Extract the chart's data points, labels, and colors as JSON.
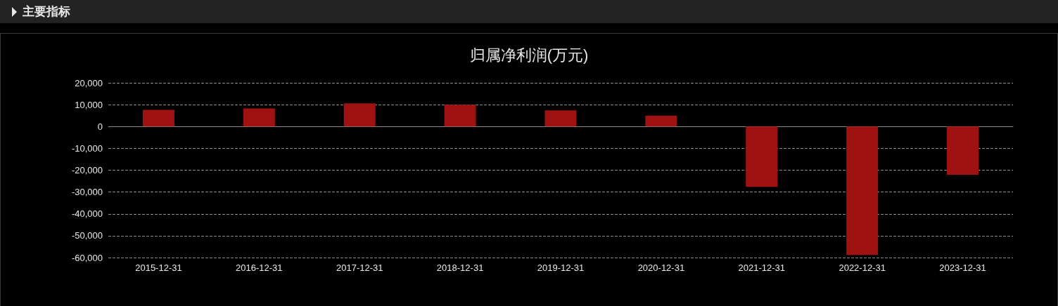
{
  "chart_data": {
    "type": "bar",
    "title": "归属净利润(万元)",
    "annotations": [
      "主要指标"
    ],
    "categories": [
      "2015-12-31",
      "2016-12-31",
      "2017-12-31",
      "2018-12-31",
      "2019-12-31",
      "2020-12-31",
      "2021-12-31",
      "2022-12-31",
      "2023-12-31"
    ],
    "values": [
      7600,
      8300,
      10600,
      10000,
      7400,
      5000,
      -27600,
      -58800,
      -22100
    ],
    "color": "#a01212",
    "ylim": [
      -60000,
      20000
    ],
    "yticks": [
      {
        "value": -60000,
        "label": "-60,000"
      },
      {
        "value": -50000,
        "label": "-50,000"
      },
      {
        "value": -40000,
        "label": "-40,000"
      },
      {
        "value": -30000,
        "label": "-30,000"
      },
      {
        "value": -20000,
        "label": "-20,000"
      },
      {
        "value": -10000,
        "label": "-10,000"
      },
      0,
      {
        "value": 10000,
        "label": "10,000"
      },
      {
        "value": 20000,
        "label": "20,000"
      }
    ],
    "grid": "y"
  }
}
